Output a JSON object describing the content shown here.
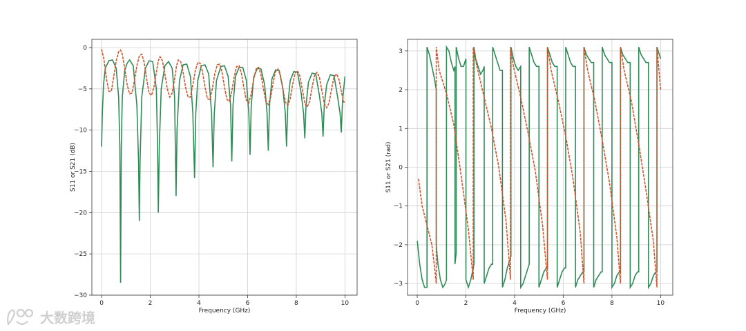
{
  "chart_data": [
    {
      "type": "line",
      "xlabel": "Frequency (GHz)",
      "ylabel": "S11 or S21 (dB)",
      "xlim": [
        -0.4,
        10.5
      ],
      "ylim": [
        -30,
        1
      ],
      "xticks": [
        0,
        2,
        4,
        6,
        8,
        10
      ],
      "yticks": [
        0,
        -5,
        -10,
        -15,
        -20,
        -25,
        -30
      ],
      "grid": true,
      "series": [
        {
          "color": "#2e8b57",
          "x": [
            0.0,
            0.03,
            0.08,
            0.15,
            0.3,
            0.45,
            0.6,
            0.7,
            0.75,
            0.78,
            0.81,
            0.85,
            0.95,
            1.05,
            1.15,
            1.3,
            1.45,
            1.52,
            1.55,
            1.58,
            1.65,
            1.8,
            1.95,
            2.1,
            2.25,
            2.3,
            2.33,
            2.37,
            2.45,
            2.6,
            2.75,
            2.9,
            3.0,
            3.06,
            3.1,
            3.2,
            3.35,
            3.5,
            3.65,
            3.75,
            3.82,
            3.87,
            3.95,
            4.1,
            4.25,
            4.4,
            4.52,
            4.58,
            4.63,
            4.72,
            4.9,
            5.05,
            5.2,
            5.3,
            5.35,
            5.4,
            5.5,
            5.65,
            5.8,
            5.95,
            6.05,
            6.1,
            6.15,
            6.25,
            6.4,
            6.55,
            6.7,
            6.8,
            6.85,
            6.9,
            7.0,
            7.15,
            7.3,
            7.45,
            7.55,
            7.6,
            7.65,
            7.75,
            7.9,
            8.05,
            8.2,
            8.3,
            8.35,
            8.4,
            8.5,
            8.65,
            8.8,
            8.95,
            9.05,
            9.1,
            9.15,
            9.25,
            9.4,
            9.55,
            9.7,
            9.8,
            9.85,
            9.9,
            10.0
          ],
          "y": [
            -12,
            -8,
            -4.5,
            -2.5,
            -1.6,
            -1.5,
            -2.5,
            -6,
            -12,
            -28.5,
            -12,
            -6,
            -2.8,
            -1.9,
            -1.5,
            -2.2,
            -7,
            -14,
            -21,
            -14,
            -6,
            -2.5,
            -1.6,
            -1.7,
            -5,
            -12,
            -20,
            -12,
            -5,
            -2.2,
            -1.7,
            -2.5,
            -6,
            -18,
            -10,
            -4,
            -2.1,
            -2,
            -3.5,
            -8,
            -15.8,
            -8,
            -4,
            -2.2,
            -2.1,
            -3.2,
            -8,
            -14.5,
            -8,
            -4,
            -2.3,
            -2.2,
            -3.5,
            -7,
            -13.8,
            -7,
            -3.5,
            -2.4,
            -2.4,
            -4,
            -8,
            -13,
            -7,
            -3.6,
            -2.5,
            -2.6,
            -4.5,
            -8,
            -12.5,
            -7,
            -3.8,
            -2.7,
            -2.8,
            -5,
            -8,
            -12,
            -7,
            -4,
            -2.9,
            -3,
            -5.5,
            -8,
            -11,
            -7,
            -4.2,
            -3.1,
            -3.2,
            -5.8,
            -8,
            -10.8,
            -7,
            -4.5,
            -3.3,
            -3.4,
            -6,
            -8,
            -10.3,
            -6.5,
            -3.5
          ]
        },
        {
          "color": "#d6532a",
          "x": [
            0.0,
            0.1,
            0.2,
            0.3,
            0.4,
            0.5,
            0.6,
            0.7,
            0.78,
            0.85,
            0.95,
            1.05,
            1.15,
            1.25,
            1.35,
            1.45,
            1.55,
            1.65,
            1.75,
            1.85,
            1.95,
            2.05,
            2.15,
            2.25,
            2.33,
            2.4,
            2.5,
            2.6,
            2.7,
            2.8,
            2.9,
            3.0,
            3.08,
            3.15,
            3.25,
            3.35,
            3.45,
            3.55,
            3.65,
            3.75,
            3.85,
            3.95,
            4.05,
            4.15,
            4.25,
            4.35,
            4.45,
            4.55,
            4.65,
            4.75,
            4.85,
            4.95,
            5.05,
            5.15,
            5.25,
            5.35,
            5.45,
            5.55,
            5.65,
            5.75,
            5.85,
            5.95,
            6.05,
            6.15,
            6.25,
            6.35,
            6.45,
            6.55,
            6.65,
            6.75,
            6.85,
            6.95,
            7.05,
            7.15,
            7.25,
            7.35,
            7.45,
            7.55,
            7.65,
            7.75,
            7.85,
            7.95,
            8.05,
            8.15,
            8.25,
            8.35,
            8.45,
            8.55,
            8.65,
            8.75,
            8.85,
            8.95,
            9.05,
            9.15,
            9.25,
            9.35,
            9.45,
            9.55,
            9.65,
            9.75,
            9.85,
            9.95,
            10.0
          ],
          "y": [
            -0.2,
            -1.5,
            -3.8,
            -5.3,
            -5.3,
            -3.5,
            -1.6,
            -0.5,
            -0.3,
            -0.8,
            -2.5,
            -4.5,
            -5.6,
            -5.5,
            -4,
            -2.2,
            -1,
            -0.8,
            -1.8,
            -3.8,
            -5.5,
            -5.8,
            -4.8,
            -3,
            -1.6,
            -1.1,
            -1.6,
            -3.2,
            -5,
            -6,
            -5.5,
            -3.8,
            -2.2,
            -1.5,
            -1.7,
            -3,
            -4.8,
            -6,
            -6,
            -4.5,
            -2.8,
            -1.8,
            -1.9,
            -3,
            -4.8,
            -6.2,
            -6.3,
            -5,
            -3.2,
            -2.1,
            -2,
            -3,
            -4.8,
            -6.3,
            -6.5,
            -5.3,
            -3.5,
            -2.3,
            -2.2,
            -3.2,
            -4.9,
            -6.4,
            -6.7,
            -5.6,
            -3.8,
            -2.6,
            -2.4,
            -3.3,
            -5,
            -6.5,
            -6.9,
            -6,
            -4.2,
            -2.9,
            -2.6,
            -3.4,
            -5,
            -6.6,
            -7,
            -6.2,
            -4.5,
            -3.1,
            -2.8,
            -3.5,
            -5.1,
            -6.7,
            -7.2,
            -6.5,
            -4.8,
            -3.4,
            -3,
            -3.6,
            -5.2,
            -6.8,
            -7.3,
            -6.7,
            -5,
            -3.6,
            -3.2,
            -3.8,
            -5.3,
            -6.6,
            -6.6
          ]
        }
      ]
    },
    {
      "type": "line",
      "xlabel": "Frequency (GHz)",
      "ylabel": "S11 or S21 (rad)",
      "xlim": [
        -0.4,
        10.5
      ],
      "ylim": [
        -3.3,
        3.3
      ],
      "xticks": [
        0,
        2,
        4,
        6,
        8,
        10
      ],
      "yticks": [
        3,
        2,
        1,
        0,
        -1,
        -2,
        -3
      ],
      "grid": true,
      "series": [
        {
          "color": "#2e8b57",
          "x": [
            0.0,
            0.1,
            0.2,
            0.3,
            0.4,
            0.4,
            0.5,
            0.6,
            0.7,
            0.78,
            0.78,
            0.85,
            0.95,
            1.05,
            1.15,
            1.2,
            1.2,
            1.3,
            1.4,
            1.5,
            1.55,
            1.55,
            1.6,
            1.6,
            1.7,
            1.8,
            1.9,
            2.0,
            2.0,
            2.1,
            2.2,
            2.3,
            2.33,
            2.33,
            2.4,
            2.5,
            2.6,
            2.7,
            2.75,
            2.75,
            2.85,
            2.95,
            3.05,
            3.1,
            3.1,
            3.2,
            3.3,
            3.4,
            3.5,
            3.5,
            3.6,
            3.7,
            3.8,
            3.85,
            3.85,
            3.95,
            4.05,
            4.15,
            4.25,
            4.25,
            4.35,
            4.45,
            4.55,
            4.6,
            4.6,
            4.7,
            4.8,
            4.9,
            5.0,
            5.0,
            5.1,
            5.2,
            5.3,
            5.35,
            5.35,
            5.45,
            5.55,
            5.65,
            5.75,
            5.75,
            5.85,
            5.95,
            6.05,
            6.1,
            6.1,
            6.2,
            6.3,
            6.4,
            6.5,
            6.5,
            6.6,
            6.7,
            6.8,
            6.85,
            6.85,
            6.95,
            7.05,
            7.15,
            7.25,
            7.25,
            7.35,
            7.45,
            7.55,
            7.6,
            7.6,
            7.7,
            7.8,
            7.9,
            8.0,
            8.0,
            8.1,
            8.2,
            8.3,
            8.35,
            8.35,
            8.45,
            8.55,
            8.65,
            8.75,
            8.75,
            8.85,
            8.95,
            9.05,
            9.1,
            9.1,
            9.2,
            9.3,
            9.4,
            9.5,
            9.5,
            9.6,
            9.7,
            9.8,
            9.85,
            9.85,
            9.95,
            10.0
          ],
          "y": [
            -1.9,
            -2.5,
            -2.9,
            -3.1,
            -3.1,
            3.1,
            2.9,
            2.6,
            2.3,
            2.0,
            -2.0,
            -2.5,
            -2.9,
            -3.1,
            -3.0,
            -2.9,
            3.1,
            3.0,
            2.7,
            2.5,
            2.6,
            -2.5,
            -2.2,
            3.1,
            2.8,
            2.6,
            2.6,
            2.8,
            -2.9,
            -3.1,
            -2.9,
            -2.6,
            -2.5,
            3.1,
            2.8,
            2.6,
            2.4,
            2.5,
            2.6,
            -3.0,
            -2.8,
            -2.6,
            -2.5,
            -2.5,
            3.1,
            2.9,
            2.7,
            2.5,
            2.5,
            -3.1,
            -2.9,
            -2.6,
            -2.4,
            -2.3,
            3.1,
            2.8,
            2.6,
            2.5,
            2.6,
            -3.1,
            -3.0,
            -2.8,
            -2.6,
            -2.5,
            3.1,
            2.9,
            2.7,
            2.6,
            2.6,
            -3.1,
            -2.9,
            -2.7,
            -2.6,
            -2.6,
            3.1,
            2.9,
            2.7,
            2.6,
            2.6,
            -3.1,
            -2.9,
            -2.7,
            -2.6,
            -2.6,
            3.1,
            2.9,
            2.7,
            2.6,
            2.6,
            -3.1,
            -2.9,
            -2.8,
            -2.7,
            -2.7,
            3.1,
            2.9,
            2.8,
            2.7,
            2.7,
            -3.1,
            -2.9,
            -2.8,
            -2.7,
            -2.7,
            3.1,
            2.9,
            2.8,
            2.7,
            2.7,
            -3.1,
            -3.0,
            -2.8,
            -2.7,
            -2.7,
            3.1,
            2.9,
            2.8,
            2.7,
            2.7,
            -3.1,
            -3.0,
            -2.8,
            -2.7,
            -2.7,
            3.1,
            2.9,
            2.8,
            2.7,
            2.7,
            -3.1,
            -3.0,
            -2.8,
            -2.7,
            -2.7,
            3.1,
            2.9,
            2.8
          ]
        },
        {
          "color": "#d6532a",
          "x": [
            0.05,
            0.2,
            0.4,
            0.6,
            0.75,
            0.78,
            0.78,
            0.9,
            1.2,
            1.5,
            1.8,
            2.1,
            2.3,
            2.3,
            2.45,
            2.75,
            3.05,
            3.35,
            3.65,
            3.83,
            3.83,
            3.95,
            4.25,
            4.55,
            4.85,
            5.15,
            5.35,
            5.35,
            5.5,
            5.8,
            6.1,
            6.4,
            6.7,
            6.85,
            6.85,
            7.0,
            7.3,
            7.6,
            7.9,
            8.2,
            8.35,
            8.35,
            8.5,
            8.8,
            9.1,
            9.4,
            9.7,
            9.85,
            9.85,
            10.0
          ],
          "y": [
            -0.3,
            -1.0,
            -1.5,
            -2.0,
            -2.8,
            -3.0,
            3.1,
            2.5,
            1.9,
            1.1,
            -0.2,
            -1.6,
            -2.9,
            3.1,
            2.6,
            1.8,
            1.0,
            0.0,
            -1.4,
            -2.9,
            3.1,
            2.6,
            1.8,
            0.9,
            -0.1,
            -1.5,
            -2.9,
            3.1,
            2.5,
            1.7,
            0.8,
            -0.3,
            -1.7,
            -3.0,
            3.1,
            2.5,
            1.7,
            0.7,
            -0.4,
            -1.8,
            -3.0,
            3.1,
            2.5,
            1.7,
            0.6,
            -0.6,
            -1.9,
            -3.1,
            3.1,
            2.0
          ]
        }
      ]
    }
  ],
  "watermark": {
    "icon": "logo-icon",
    "text": "大数跨境"
  }
}
